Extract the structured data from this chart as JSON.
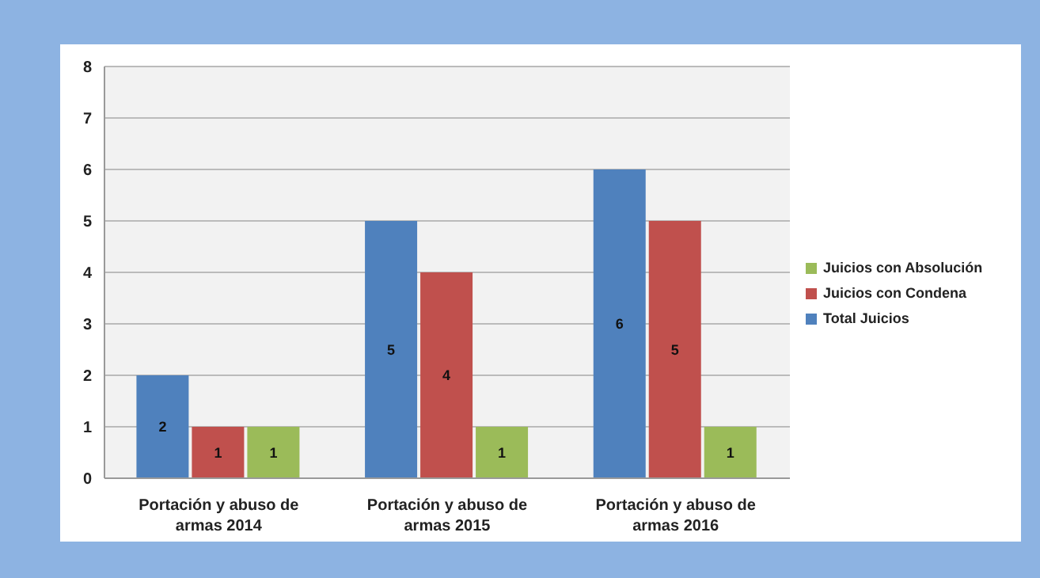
{
  "chart_data": {
    "type": "bar",
    "categories": [
      "Portación y abuso de armas 2014",
      "Portación y abuso de armas 2015",
      "Portación y abuso de armas 2016"
    ],
    "series": [
      {
        "name": "Total Juicios",
        "color": "#4f81bd",
        "values": [
          2,
          5,
          6
        ]
      },
      {
        "name": "Juicios con Condena",
        "color": "#c0504d",
        "values": [
          1,
          4,
          5
        ]
      },
      {
        "name": "Juicios con Absolución",
        "color": "#9bbb59",
        "values": [
          1,
          1,
          1
        ]
      }
    ],
    "ylim": [
      0,
      8
    ],
    "yticks": [
      0,
      1,
      2,
      3,
      4,
      5,
      6,
      7,
      8
    ],
    "grid": "y",
    "legend": "right",
    "data_labels": true
  }
}
